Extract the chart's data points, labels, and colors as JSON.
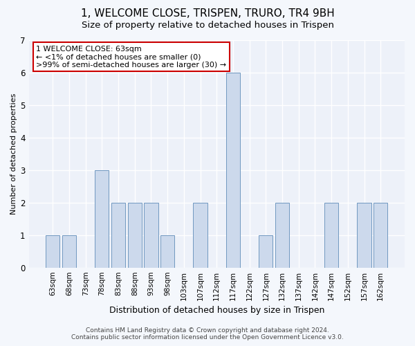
{
  "title1": "1, WELCOME CLOSE, TRISPEN, TRURO, TR4 9BH",
  "title2": "Size of property relative to detached houses in Trispen",
  "xlabel": "Distribution of detached houses by size in Trispen",
  "ylabel": "Number of detached properties",
  "categories": [
    "63sqm",
    "68sqm",
    "73sqm",
    "78sqm",
    "83sqm",
    "88sqm",
    "93sqm",
    "98sqm",
    "103sqm",
    "107sqm",
    "112sqm",
    "117sqm",
    "122sqm",
    "127sqm",
    "132sqm",
    "137sqm",
    "142sqm",
    "147sqm",
    "152sqm",
    "157sqm",
    "162sqm"
  ],
  "values": [
    1,
    1,
    0,
    3,
    2,
    2,
    2,
    1,
    0,
    2,
    0,
    6,
    0,
    1,
    2,
    0,
    0,
    2,
    0,
    2,
    2
  ],
  "bar_color": "#ccd9ec",
  "bar_edge_color": "#7098c0",
  "annotation_text": "1 WELCOME CLOSE: 63sqm\n← <1% of detached houses are smaller (0)\n>99% of semi-detached houses are larger (30) →",
  "annotation_box_color": "#ffffff",
  "annotation_box_edge_color": "#cc0000",
  "ylim": [
    0,
    7
  ],
  "yticks": [
    0,
    1,
    2,
    3,
    4,
    5,
    6,
    7
  ],
  "footer_text": "Contains HM Land Registry data © Crown copyright and database right 2024.\nContains public sector information licensed under the Open Government Licence v3.0.",
  "bg_color": "#f4f7fc",
  "plot_bg_color": "#edf1f9",
  "grid_color": "#ffffff",
  "title1_fontsize": 11,
  "title2_fontsize": 9.5,
  "xlabel_fontsize": 9,
  "ylabel_fontsize": 8,
  "tick_fontsize": 7.5,
  "ann_fontsize": 8,
  "footer_fontsize": 6.5
}
